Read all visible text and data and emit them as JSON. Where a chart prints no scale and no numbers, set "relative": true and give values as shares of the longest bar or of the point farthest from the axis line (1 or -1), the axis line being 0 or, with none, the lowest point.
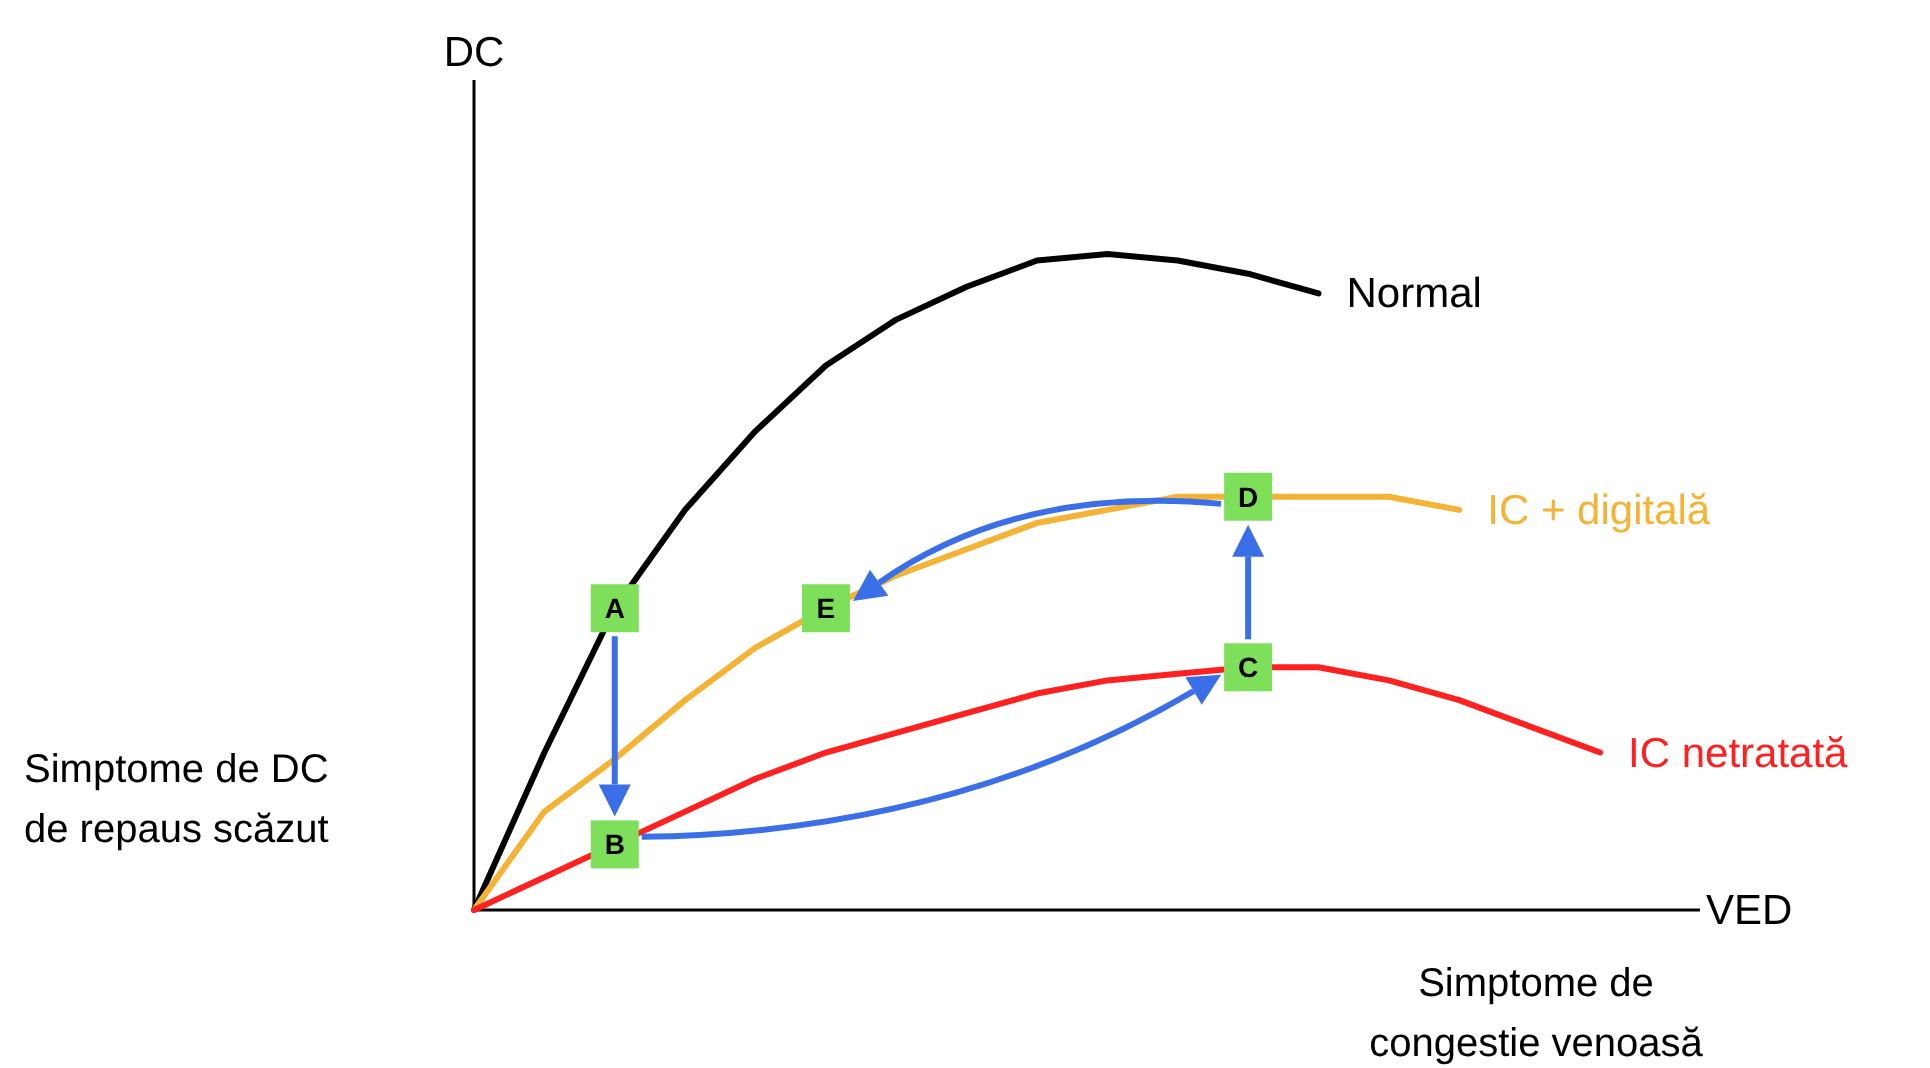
{
  "chart_data": {
    "type": "line",
    "relative": true,
    "xlabel": "VED",
    "ylabel": "DC",
    "categories": [
      null,
      null,
      null,
      null,
      null,
      null,
      null,
      null,
      null,
      null,
      null,
      null,
      null,
      null,
      null,
      null,
      null
    ],
    "series": [
      {
        "name": "Normal",
        "color": "#000000",
        "values": [
          0,
          0.24,
          0.46,
          0.61,
          0.73,
          0.83,
          0.9,
          0.95,
          0.99,
          1,
          0.99,
          0.97,
          0.94,
          null,
          null,
          null,
          null
        ]
      },
      {
        "name": "IC + digitală",
        "color": "#f5b335",
        "values": [
          0,
          0.15,
          0.23,
          0.32,
          0.4,
          0.46,
          0.51,
          0.55,
          0.59,
          0.61,
          0.63,
          0.63,
          0.63,
          0.63,
          0.61,
          null,
          null
        ]
      },
      {
        "name": "IC netratată",
        "color": "#ff2020",
        "values": [
          0,
          0.05,
          0.1,
          0.15,
          0.2,
          0.24,
          0.27,
          0.3,
          0.33,
          0.35,
          0.36,
          0.37,
          0.37,
          0.35,
          0.32,
          0.28,
          0.24
        ]
      }
    ],
    "annotations": [
      "Simptome de DC\nde repaus scăzut",
      "Simptome de\ncongestie venoasă",
      {
        "text": "A",
        "y": 0.46
      },
      {
        "text": "B",
        "y": 0.1
      },
      {
        "text": "C",
        "y": 0.37
      },
      {
        "text": "D",
        "y": 0.63
      },
      {
        "text": "E",
        "y": 0.46
      }
    ]
  }
}
